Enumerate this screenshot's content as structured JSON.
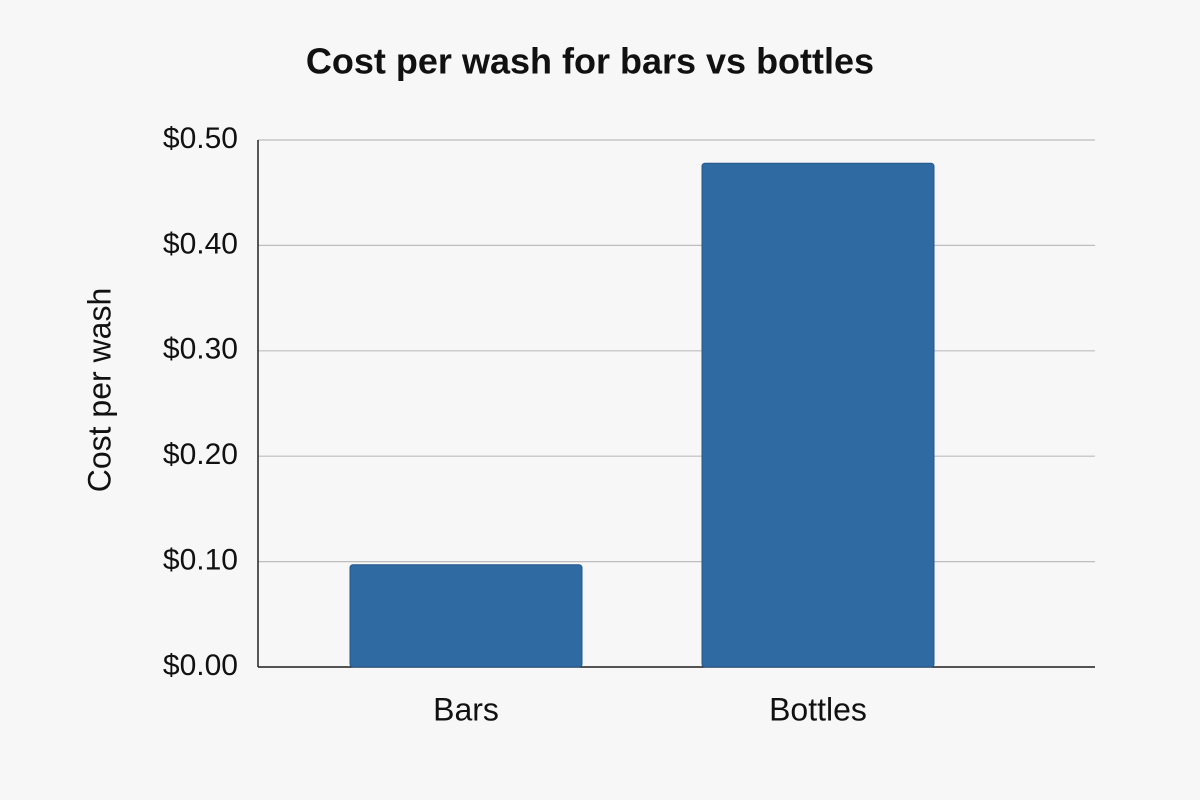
{
  "chart_data": {
    "type": "bar",
    "title": "Cost per wash for bars vs bottles",
    "y_label": "Cost per wash",
    "categories": [
      "Bars",
      "Bottles"
    ],
    "values": [
      0.097,
      0.478
    ],
    "color": "#2f6aa3",
    "ylim": [
      0,
      0.5
    ],
    "yticks": [
      {
        "value": 0,
        "label": "$0.00"
      },
      {
        "value": 0.1,
        "label": "$0.10"
      },
      {
        "value": 0.2,
        "label": "$0.20"
      },
      {
        "value": 0.3,
        "label": "$0.30"
      },
      {
        "value": 0.4,
        "label": "$0.40"
      },
      {
        "value": 0.5,
        "label": "$0.50"
      }
    ],
    "grid": true
  }
}
